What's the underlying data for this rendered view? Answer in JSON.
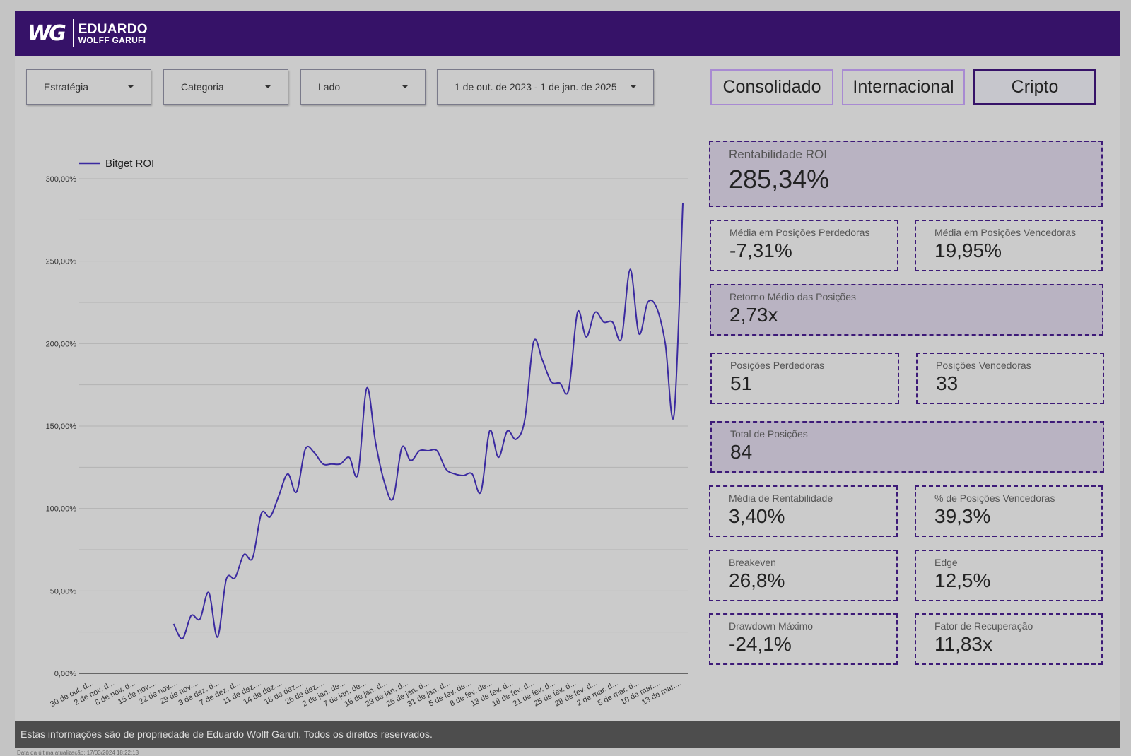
{
  "header": {
    "logo_mark": "WG",
    "logo_line1": "EDUARDO",
    "logo_line2": "WOLFF GARUFI"
  },
  "filters": {
    "estrategia": "Estratégia",
    "categoria": "Categoria",
    "lado": "Lado",
    "date_range": "1 de out. de 2023 - 1 de jan. de 2025"
  },
  "nav": {
    "consolidado": "Consolidado",
    "internacional": "Internacional",
    "cripto": "Cripto",
    "active": "cripto"
  },
  "colors": {
    "header_bg": "#361268",
    "line": "#3b2aa0",
    "kpi_border": "#3d1a78",
    "kpi_shade": "#b9b3c2",
    "footer_bg": "#4d4d4d"
  },
  "chart_data": {
    "type": "line",
    "legend": "top-left",
    "grid": true,
    "ylim": [
      0,
      300
    ],
    "y_ticks": [
      "0,00%",
      "50,00%",
      "100,00%",
      "150,00%",
      "200,00%",
      "250,00%",
      "300,00%"
    ],
    "x_tick_labels": [
      "30 de out. d...",
      "2 de nov. d...",
      "8 de nov. d...",
      "15 de nov....",
      "22 de nov....",
      "29 de nov....",
      "3 de dez. d...",
      "7 de dez. d...",
      "11 de dez....",
      "14 de dez....",
      "18 de dez....",
      "26 de dez....",
      "2 de jan. de...",
      "7 de jan. de...",
      "16 de jan. d...",
      "23 de jan. d...",
      "26 de jan. d...",
      "31 de jan. d...",
      "5 de fev. de...",
      "8 de fev. de...",
      "13 de fev. d...",
      "18 de fev. d...",
      "21 de fev. d...",
      "25 de fev. d...",
      "28 de fev. d...",
      "2 de mar. d...",
      "5 de mar. d...",
      "10 de mar....",
      "13 de mar...."
    ],
    "series": [
      {
        "name": "Bitget ROI",
        "x_start_index": 5,
        "y": [
          30,
          21,
          35,
          33,
          49,
          22,
          57,
          58,
          72,
          70,
          97,
          95,
          108,
          121,
          110,
          136,
          134,
          127,
          127,
          127,
          131,
          121,
          173,
          140,
          116,
          106,
          137,
          129,
          135,
          135,
          135,
          124,
          121,
          120,
          121,
          110,
          147,
          131,
          147,
          142,
          154,
          201,
          190,
          177,
          176,
          172,
          219,
          204,
          219,
          213,
          213,
          203,
          245,
          206,
          225,
          222,
          200,
          157,
          285
        ]
      }
    ]
  },
  "kpis": {
    "roi": {
      "title": "Rentabilidade ROI",
      "value": "285,34%"
    },
    "media_perdedoras": {
      "title": "Média em Posições Perdedoras",
      "value": "-7,31%"
    },
    "media_vencedoras": {
      "title": "Média em Posições Vencedoras",
      "value": "19,95%"
    },
    "retorno_medio": {
      "title": "Retorno Médio das Posições",
      "value": "2,73x"
    },
    "pos_perdedoras": {
      "title": "Posições Perdedoras",
      "value": "51"
    },
    "pos_vencedoras": {
      "title": "Posições Vencedoras",
      "value": "33"
    },
    "total_posicoes": {
      "title": "Total de Posições",
      "value": "84"
    },
    "media_rentabilidade": {
      "title": "Média de Rentabilidade",
      "value": "3,40%"
    },
    "pct_vencedoras": {
      "title": "% de Posições Vencedoras",
      "value": "39,3%"
    },
    "breakeven": {
      "title": "Breakeven",
      "value": "26,8%"
    },
    "edge": {
      "title": "Edge",
      "value": "12,5%"
    },
    "drawdown": {
      "title": "Drawdown Máximo",
      "value": "-24,1%"
    },
    "fator_recuperacao": {
      "title": "Fator de Recuperação",
      "value": "11,83x"
    }
  },
  "footer": {
    "text": "Estas informações são de propriedade de Eduardo Wolff Garufi. Todos os direitos reservados.",
    "updated": "Data da última atualização: 17/03/2024 18:22:13"
  }
}
